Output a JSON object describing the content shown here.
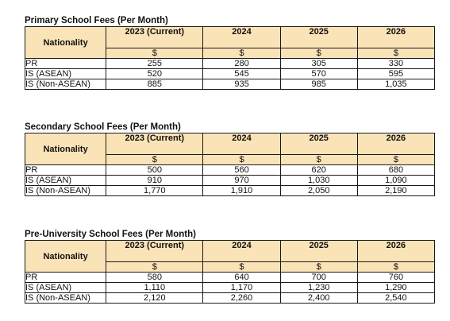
{
  "tables": [
    {
      "title": "Primary School Fees (Per Month)",
      "nationality_header": "Nationality",
      "years": [
        "2023 (Current)",
        "2024",
        "2025",
        "2026"
      ],
      "currency": [
        "$",
        "$",
        "$",
        "$"
      ],
      "rows": [
        {
          "label": "PR",
          "values": [
            "255",
            "280",
            "305",
            "330"
          ]
        },
        {
          "label": "IS (ASEAN)",
          "values": [
            "520",
            "545",
            "570",
            "595"
          ]
        },
        {
          "label": "IS (Non-ASEAN)",
          "values": [
            "885",
            "935",
            "985",
            "1,035"
          ]
        }
      ]
    },
    {
      "title": "Secondary School Fees (Per Month)",
      "nationality_header": "Nationality",
      "years": [
        "2023 (Current)",
        "2024",
        "2025",
        "2026"
      ],
      "currency": [
        "$",
        "$",
        "$",
        "$"
      ],
      "rows": [
        {
          "label": "PR",
          "values": [
            "500",
            "560",
            "620",
            "680"
          ]
        },
        {
          "label": "IS (ASEAN)",
          "values": [
            "910",
            "970",
            "1,030",
            "1,090"
          ]
        },
        {
          "label": "IS (Non-ASEAN)",
          "values": [
            "1,770",
            "1,910",
            "2,050",
            "2,190"
          ]
        }
      ]
    },
    {
      "title": "Pre-University School Fees (Per Month)",
      "nationality_header": "Nationality",
      "years": [
        "2023 (Current)",
        "2024",
        "2025",
        "2026"
      ],
      "currency": [
        "$",
        "$",
        "$",
        "$"
      ],
      "rows": [
        {
          "label": "PR",
          "values": [
            "580",
            "640",
            "700",
            "760"
          ]
        },
        {
          "label": "IS (ASEAN)",
          "values": [
            "1,110",
            "1,170",
            "1,230",
            "1,290"
          ]
        },
        {
          "label": "IS (Non-ASEAN)",
          "values": [
            "2,120",
            "2,260",
            "2,400",
            "2,540"
          ]
        }
      ]
    }
  ],
  "colors": {
    "header_fill": "#fbe3b8",
    "border": "#1a1a1a"
  }
}
